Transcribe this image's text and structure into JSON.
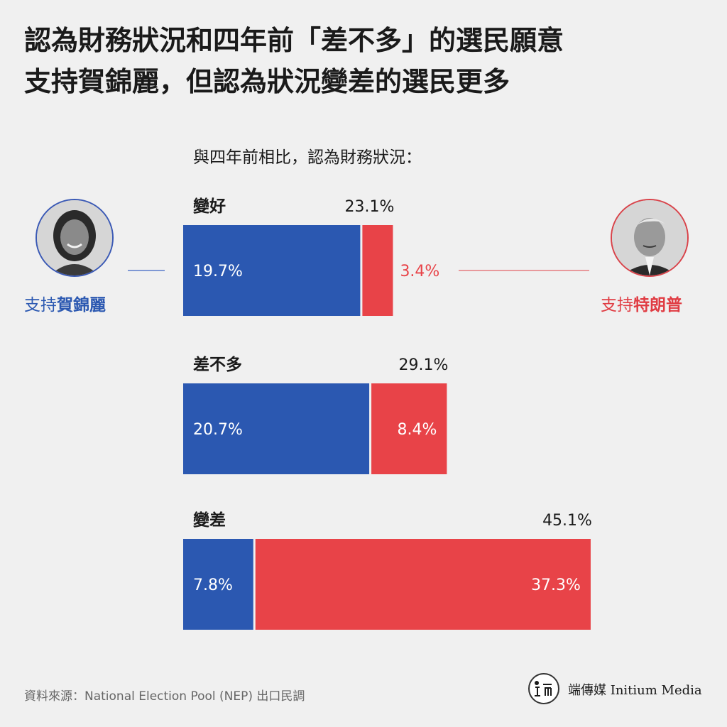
{
  "title": {
    "line1": "認為財務狀況和四年前「差不多」的選民願意",
    "line2": "支持賀錦麗，但認為狀況變差的選民更多"
  },
  "subtitle": "與四年前相比，認為財務狀況：",
  "candidates": {
    "harris": {
      "prefix": "支持",
      "name": "賀錦麗"
    },
    "trump": {
      "prefix": "支持",
      "name": "特朗普"
    }
  },
  "colors": {
    "harris": "#2b58b1",
    "trump": "#e84348",
    "background": "#f0f0f0"
  },
  "source": "資料來源：National Election Pool (NEP) 出口民調",
  "logo": {
    "name": "端傳媒 Initium Media"
  },
  "chart_data": {
    "type": "bar",
    "orientation": "horizontal",
    "stacked": true,
    "categories": [
      "變好",
      "差不多",
      "變差"
    ],
    "series": [
      {
        "name": "支持賀錦麗",
        "values": [
          19.7,
          20.7,
          7.8
        ],
        "labels": [
          "19.7%",
          "20.7%",
          "7.8%"
        ]
      },
      {
        "name": "支持特朗普",
        "values": [
          3.4,
          8.4,
          37.3
        ],
        "labels": [
          "3.4%",
          "8.4%",
          "37.3%"
        ]
      }
    ],
    "totals": [
      23.1,
      29.1,
      45.1
    ],
    "total_labels": [
      "23.1%",
      "29.1%",
      "45.1%"
    ],
    "unit": "%",
    "grid": false,
    "legend": "none"
  }
}
